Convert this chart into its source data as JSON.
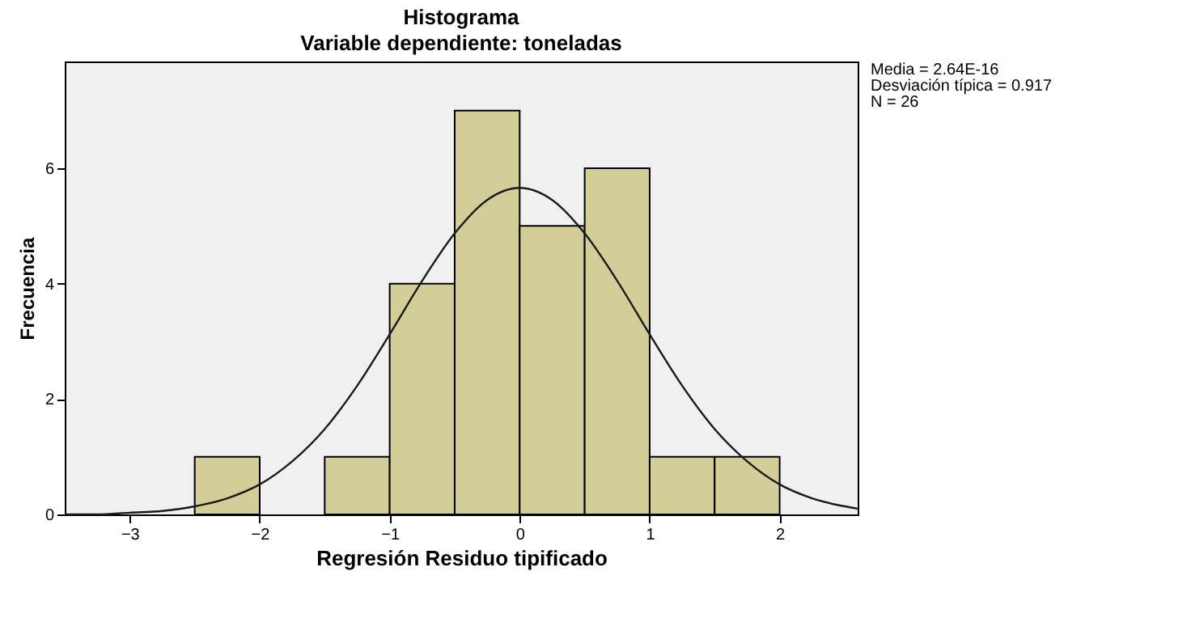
{
  "chart_data": {
    "type": "histogram",
    "title": "Histograma",
    "subtitle": "Variable dependiente: toneladas",
    "xlabel": "Regresión Residuo tipificado",
    "ylabel": "Frecuencia",
    "bins": [
      -2.5,
      -2,
      -1.5,
      -1,
      -0.5,
      0,
      0.5,
      1,
      1.5,
      2
    ],
    "values": [
      1,
      0,
      1,
      4,
      7,
      5,
      6,
      1,
      1
    ],
    "color": "#d3ce97",
    "series": [
      {
        "type": "line",
        "color": "#1a1a1a",
        "x": [
          -3.5,
          -3.25,
          -3,
          -2.75,
          -2.5,
          -2.25,
          -2,
          -1.75,
          -1.5,
          -1.25,
          -1,
          -0.75,
          -0.5,
          -0.25,
          0,
          0.25,
          0.5,
          0.75,
          1,
          1.25,
          1.5,
          1.75,
          2,
          2.25,
          2.5,
          2.6
        ],
        "values": [
          0,
          0,
          0.03,
          0.06,
          0.14,
          0.28,
          0.52,
          0.92,
          1.48,
          2.23,
          3.12,
          4.05,
          4.87,
          5.45,
          5.66,
          5.45,
          4.87,
          4.05,
          3.12,
          2.23,
          1.48,
          0.92,
          0.52,
          0.28,
          0.14,
          0.1
        ]
      }
    ],
    "xlim": [
      -3.5,
      2.6
    ],
    "xticks": [
      -3,
      -2,
      -1,
      0,
      1,
      2
    ],
    "ylim": [
      0,
      7.85
    ],
    "yticks": [
      0,
      2,
      4,
      6
    ],
    "grid": false,
    "annotations": [
      "Media = 2.64E-16",
      "Desviación típica = 0.917",
      "N = 26"
    ]
  }
}
